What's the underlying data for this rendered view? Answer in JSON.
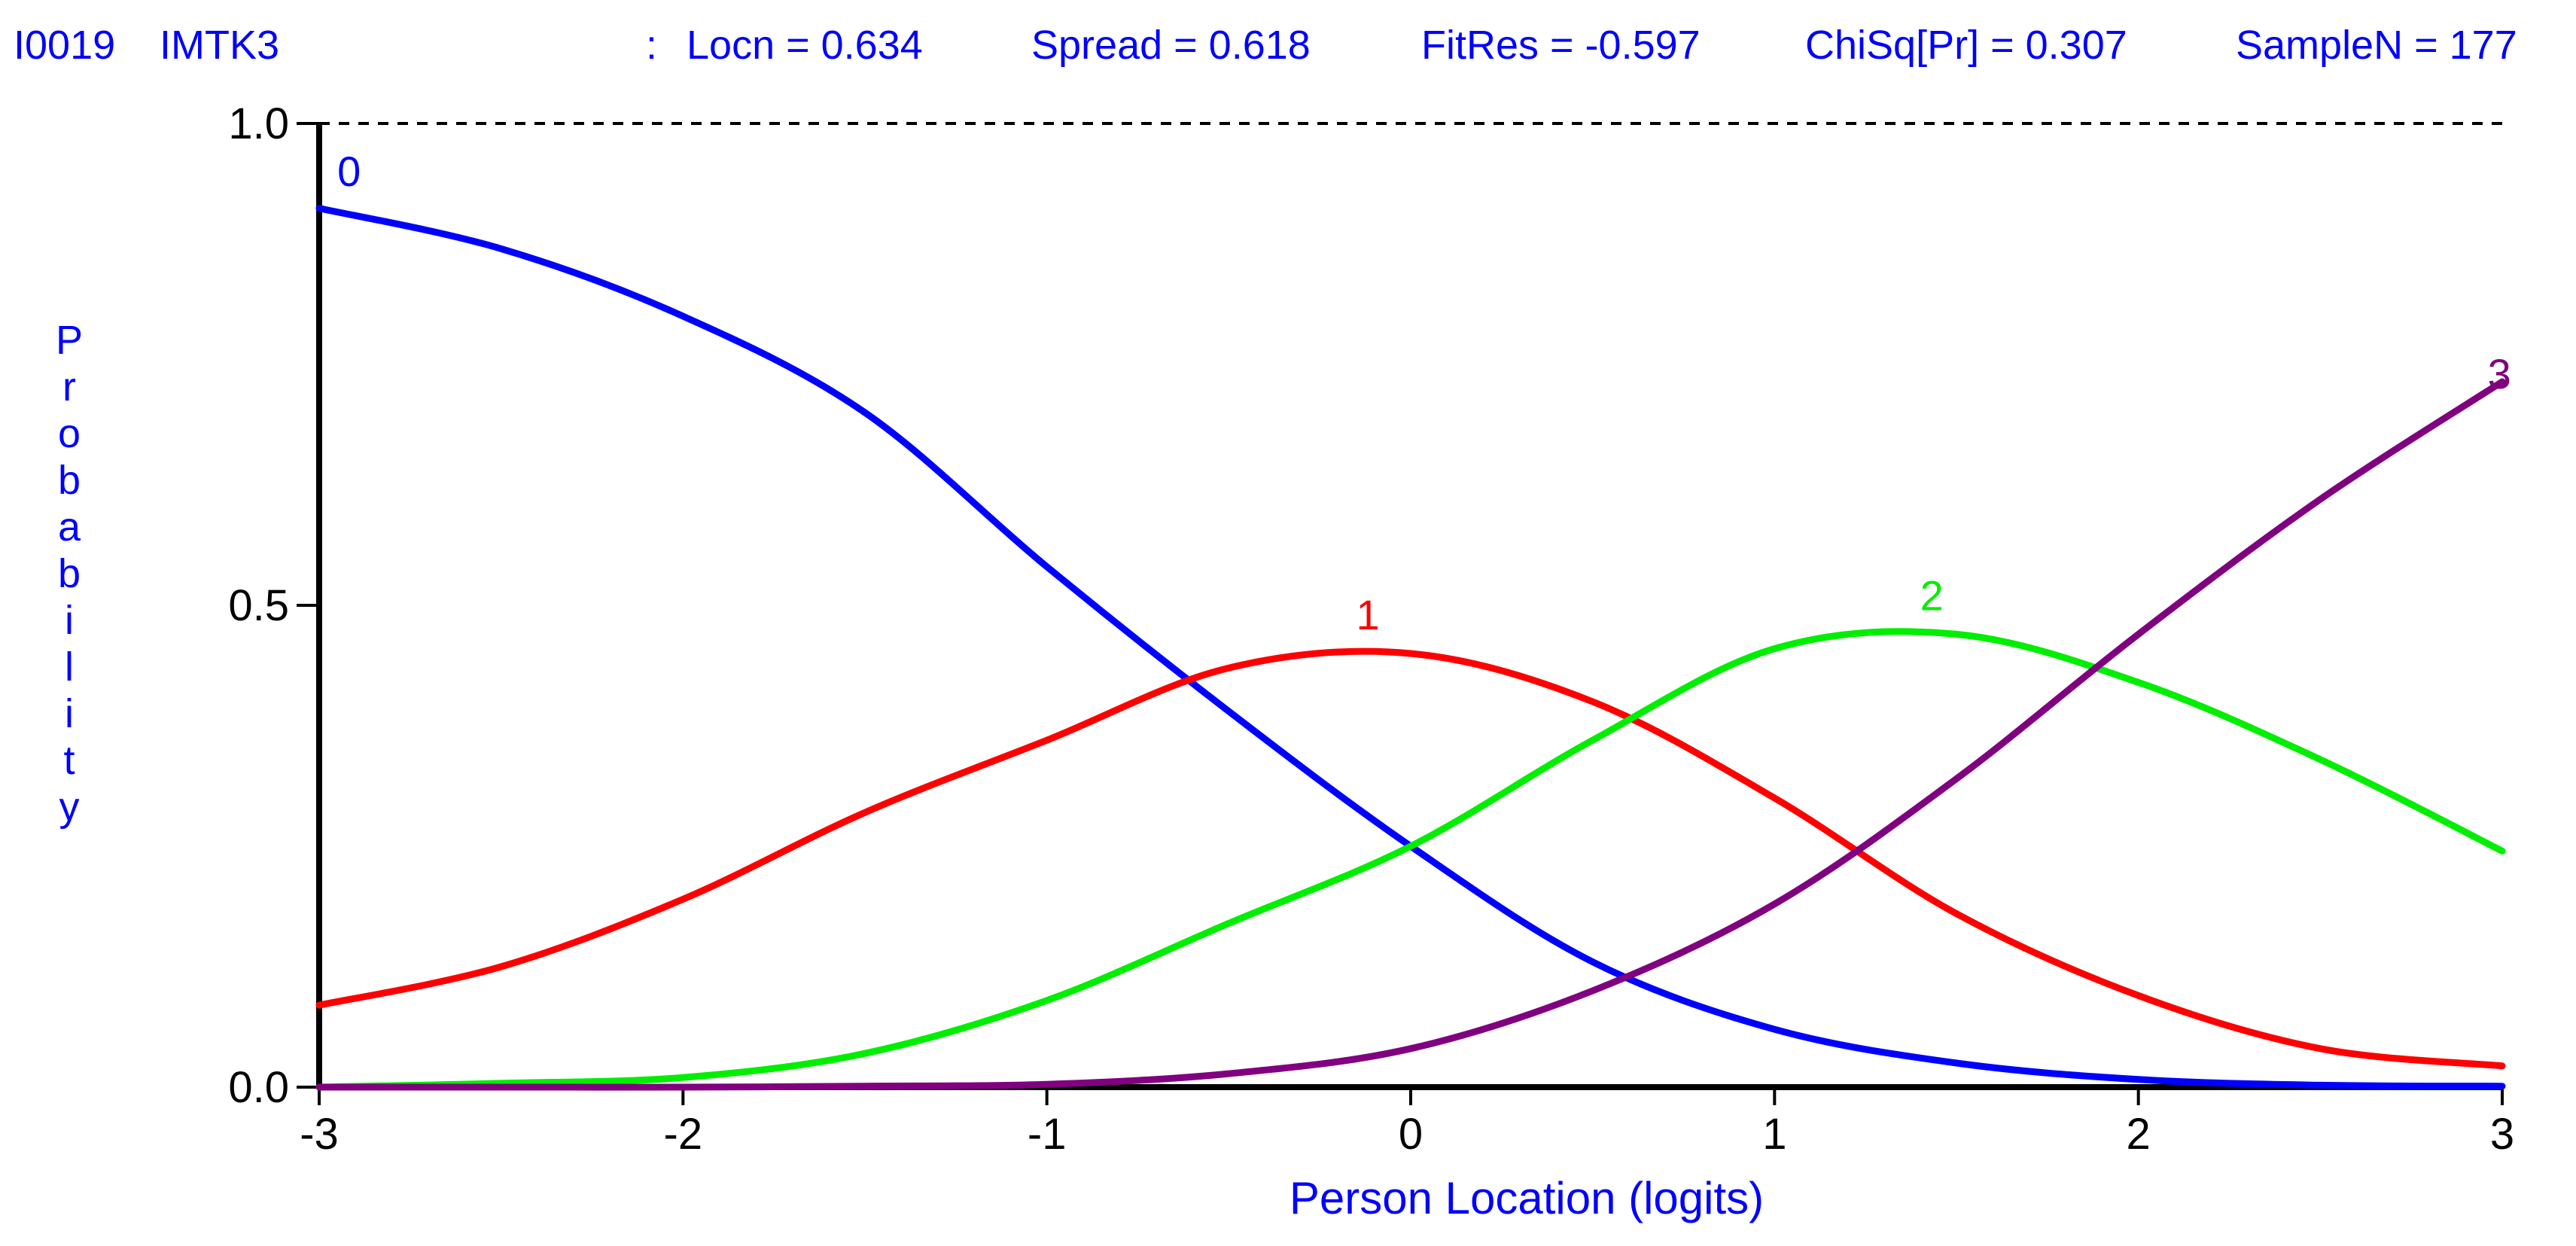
{
  "header": {
    "item_id": "I0019",
    "item_name": "IMTK3",
    "separator": ":",
    "stats": [
      "Locn = 0.634",
      "Spread = 0.618",
      "FitRes = -0.597",
      "ChiSq[Pr] = 0.307",
      "SampleN = 177"
    ]
  },
  "colors": {
    "text": "#0000ff",
    "axis": "#000000",
    "cat0": "#0000ff",
    "cat1": "#ff0000",
    "cat2": "#00ee00",
    "cat3": "#800080"
  },
  "chart_data": {
    "type": "line",
    "xlabel": "Person Location (logits)",
    "ylabel": "Probability",
    "xlim": [
      -3,
      3
    ],
    "ylim": [
      0,
      1
    ],
    "x_ticks": [
      -3,
      -2,
      -1,
      0,
      1,
      2,
      3
    ],
    "x_tick_labels": [
      "-3",
      "-2",
      "-1",
      "0",
      "1",
      "2",
      "3"
    ],
    "y_ticks": [
      0,
      0.5,
      1
    ],
    "y_tick_labels": [
      "0.0",
      "0.5",
      "1.0"
    ],
    "reference_line": {
      "y": 1.0,
      "style": "dashed"
    },
    "grid": false,
    "legend": "none",
    "x": [
      -3.0,
      -2.5,
      -2.0,
      -1.5,
      -1.0,
      -0.5,
      0.0,
      0.5,
      1.0,
      1.5,
      2.0,
      2.5,
      3.0
    ],
    "series": [
      {
        "label": "0",
        "color": "#0000ff",
        "label_x": -2.95,
        "label_y": 0.935,
        "values": [
          0.912,
          0.87,
          0.8,
          0.7,
          0.54,
          0.39,
          0.25,
          0.13,
          0.06,
          0.025,
          0.008,
          0.002,
          0.001
        ]
      },
      {
        "label": "1",
        "color": "#ff0000",
        "label_x": -0.15,
        "label_y": 0.475,
        "values": [
          0.085,
          0.125,
          0.195,
          0.285,
          0.36,
          0.435,
          0.45,
          0.4,
          0.3,
          0.18,
          0.095,
          0.04,
          0.022
        ]
      },
      {
        "label": "2",
        "color": "#00ee00",
        "label_x": 1.4,
        "label_y": 0.495,
        "values": [
          0.0,
          0.004,
          0.01,
          0.035,
          0.09,
          0.17,
          0.25,
          0.36,
          0.455,
          0.47,
          0.42,
          0.34,
          0.245
        ]
      },
      {
        "label": "3",
        "color": "#800080",
        "label_x": 2.96,
        "label_y": 0.725,
        "values": [
          0.0,
          0.0,
          0.0,
          0.001,
          0.003,
          0.014,
          0.04,
          0.1,
          0.19,
          0.32,
          0.47,
          0.61,
          0.732
        ]
      }
    ]
  }
}
